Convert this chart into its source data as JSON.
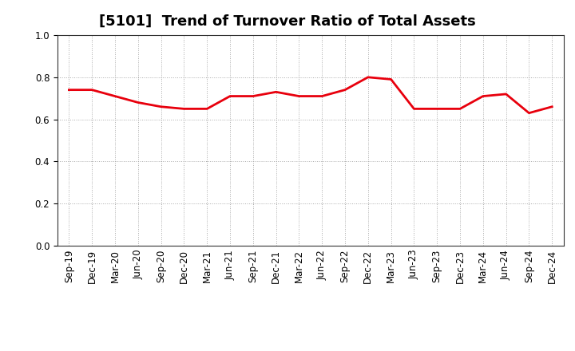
{
  "title": "[5101]  Trend of Turnover Ratio of Total Assets",
  "labels": [
    "Sep-19",
    "Dec-19",
    "Mar-20",
    "Jun-20",
    "Sep-20",
    "Dec-20",
    "Mar-21",
    "Jun-21",
    "Sep-21",
    "Dec-21",
    "Mar-22",
    "Jun-22",
    "Sep-22",
    "Dec-22",
    "Mar-23",
    "Jun-23",
    "Sep-23",
    "Dec-23",
    "Mar-24",
    "Jun-24",
    "Sep-24",
    "Dec-24"
  ],
  "values": [
    0.74,
    0.74,
    0.71,
    0.68,
    0.66,
    0.65,
    0.65,
    0.71,
    0.71,
    0.73,
    0.71,
    0.71,
    0.74,
    0.8,
    0.79,
    0.65,
    0.65,
    0.65,
    0.71,
    0.72,
    0.63,
    0.66
  ],
  "line_color": "#e8000d",
  "line_width": 2.0,
  "ylim": [
    0.0,
    1.0
  ],
  "yticks": [
    0.0,
    0.2,
    0.4,
    0.6,
    0.8,
    1.0
  ],
  "background_color": "#ffffff",
  "grid_color": "#aaaaaa",
  "grid_style": "dotted",
  "title_fontsize": 13,
  "tick_fontsize": 8.5,
  "figsize": [
    7.2,
    4.4
  ],
  "dpi": 100
}
